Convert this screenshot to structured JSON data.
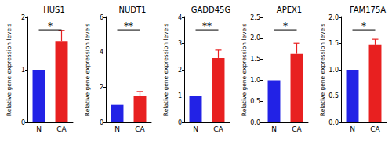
{
  "chart_data": [
    {
      "type": "bar",
      "title": "HUS1",
      "y_label": "Relative gene expression levels",
      "categories": [
        "N",
        "CA"
      ],
      "values": [
        1,
        1.55
      ],
      "errors": [
        0,
        0.2
      ],
      "colors": [
        "#2222e6",
        "#e82020"
      ],
      "annotation": "*",
      "ylim": [
        0,
        2
      ],
      "yticks": [
        0,
        1,
        2
      ],
      "grid": false
    },
    {
      "type": "bar",
      "title": "NUDT1",
      "y_label": "Relative gene expression levels",
      "categories": [
        "N",
        "CA"
      ],
      "values": [
        1,
        1.5
      ],
      "errors": [
        0,
        0.25
      ],
      "colors": [
        "#2222e6",
        "#e82020"
      ],
      "annotation": "**",
      "ylim": [
        0,
        6
      ],
      "yticks": [
        0,
        2,
        4,
        6
      ],
      "grid": false
    },
    {
      "type": "bar",
      "title": "GADD45G",
      "y_label": "Relative gene expression levels",
      "categories": [
        "N",
        "CA"
      ],
      "values": [
        1,
        2.45
      ],
      "errors": [
        0,
        0.3
      ],
      "colors": [
        "#2222e6",
        "#e82020"
      ],
      "annotation": "**",
      "ylim": [
        0,
        4
      ],
      "yticks": [
        0,
        1,
        2,
        3,
        4
      ],
      "grid": false
    },
    {
      "type": "bar",
      "title": "APEX1",
      "y_label": "Relative gene expression levels",
      "categories": [
        "N",
        "CA"
      ],
      "values": [
        1,
        1.63
      ],
      "errors": [
        0,
        0.25
      ],
      "colors": [
        "#2222e6",
        "#e82020"
      ],
      "annotation": "*",
      "ylim": [
        0,
        2.5
      ],
      "yticks": [
        {
          "value": 0,
          "label": "0.0"
        },
        {
          "value": 0.5,
          "label": "0.5"
        },
        {
          "value": 1,
          "label": "1.0"
        },
        {
          "value": 1.5,
          "label": "1.5"
        },
        {
          "value": 2,
          "label": "2.0"
        },
        {
          "value": 2.5,
          "label": "2.5"
        }
      ],
      "grid": false
    },
    {
      "type": "bar",
      "title": "FAM175A",
      "y_label": "Relative gene expression levels",
      "categories": [
        "N",
        "CA"
      ],
      "values": [
        1,
        1.48
      ],
      "errors": [
        0,
        0.1
      ],
      "colors": [
        "#2222e6",
        "#e82020"
      ],
      "annotation": "*",
      "ylim": [
        0,
        2
      ],
      "yticks": [
        {
          "value": 0,
          "label": "0.0"
        },
        {
          "value": 0.5,
          "label": "0.5"
        },
        {
          "value": 1,
          "label": "1.0"
        },
        {
          "value": 1.5,
          "label": "1.5"
        },
        {
          "value": 2,
          "label": "2.0"
        }
      ],
      "grid": false
    }
  ]
}
